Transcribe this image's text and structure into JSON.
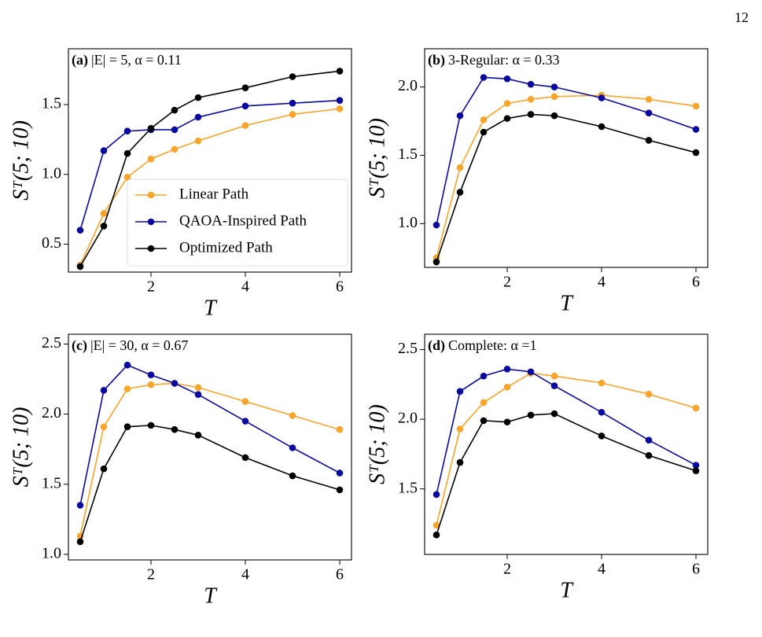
{
  "page_number": "12",
  "chart_data": [
    {
      "type": "line",
      "title_label": "(a)",
      "title": "|E| = 5, α = 0.11",
      "xlabel": "T",
      "ylabel": "Sᵀ(5; 10)",
      "x": [
        0.5,
        1,
        1.5,
        2,
        2.5,
        3,
        4,
        5,
        6
      ],
      "series": [
        {
          "name": "Linear Path",
          "color": "#f7a52c",
          "values": [
            0.35,
            0.72,
            0.98,
            1.11,
            1.18,
            1.24,
            1.35,
            1.43,
            1.47
          ]
        },
        {
          "name": "QAOA-Inspired Path",
          "color": "#0a0a9e",
          "values": [
            0.6,
            1.17,
            1.31,
            1.32,
            1.32,
            1.41,
            1.49,
            1.51,
            1.53
          ]
        },
        {
          "name": "Optimized Path",
          "color": "#000000",
          "values": [
            0.34,
            0.63,
            1.15,
            1.33,
            1.46,
            1.55,
            1.62,
            1.7,
            1.74
          ]
        }
      ],
      "xlim": [
        0.25,
        6.25
      ],
      "ylim": [
        0.3,
        1.9
      ],
      "xticks": [
        2,
        4,
        6
      ],
      "yticks": [
        0.5,
        {
          "value": 1,
          "label": "1.0"
        },
        1.5
      ],
      "legend": "lower right"
    },
    {
      "type": "line",
      "title_label": "(b)",
      "title": "3-Regular: α = 0.33",
      "xlabel": "T",
      "ylabel": "Sᵀ(5; 10)",
      "x": [
        0.5,
        1,
        1.5,
        2,
        2.5,
        3,
        4,
        5,
        6
      ],
      "series": [
        {
          "name": "Linear Path",
          "color": "#f7a52c",
          "values": [
            0.75,
            1.41,
            1.76,
            1.88,
            1.91,
            1.93,
            1.94,
            1.91,
            1.86
          ]
        },
        {
          "name": "QAOA-Inspired Path",
          "color": "#0a0a9e",
          "values": [
            0.99,
            1.79,
            2.07,
            2.06,
            2.02,
            2.0,
            1.92,
            1.81,
            1.69
          ]
        },
        {
          "name": "Optimized Path",
          "color": "#000000",
          "values": [
            0.72,
            1.23,
            1.67,
            1.77,
            1.8,
            1.79,
            1.71,
            1.61,
            1.52
          ]
        }
      ],
      "xlim": [
        0.25,
        6.25
      ],
      "ylim": [
        0.68,
        2.28
      ],
      "xticks": [
        2,
        4,
        6
      ],
      "yticks": [
        {
          "value": 1,
          "label": "1.0"
        },
        1.5,
        {
          "value": 2,
          "label": "2.0"
        }
      ]
    },
    {
      "type": "line",
      "title_label": "(c)",
      "title": "|E| = 30, α = 0.67",
      "xlabel": "T",
      "ylabel": "Sᵀ(5; 10)",
      "x": [
        0.5,
        1,
        1.5,
        2,
        2.5,
        3,
        4,
        5,
        6
      ],
      "series": [
        {
          "name": "Linear Path",
          "color": "#f7a52c",
          "values": [
            1.13,
            1.91,
            2.18,
            2.21,
            2.22,
            2.19,
            2.09,
            1.99,
            1.89
          ]
        },
        {
          "name": "QAOA-Inspired Path",
          "color": "#0a0a9e",
          "values": [
            1.35,
            2.17,
            2.35,
            2.28,
            2.22,
            2.14,
            1.95,
            1.76,
            1.58
          ]
        },
        {
          "name": "Optimized Path",
          "color": "#000000",
          "values": [
            1.09,
            1.61,
            1.91,
            1.92,
            1.89,
            1.85,
            1.69,
            1.56,
            1.46
          ]
        }
      ],
      "xlim": [
        0.25,
        6.25
      ],
      "ylim": [
        0.96,
        2.57
      ],
      "xticks": [
        2,
        4,
        6
      ],
      "yticks": [
        {
          "value": 1,
          "label": "1.0"
        },
        1.5,
        {
          "value": 2,
          "label": "2.0"
        },
        2.5
      ]
    },
    {
      "type": "line",
      "title_label": "(d)",
      "title": "Complete: α =1",
      "xlabel": "T",
      "ylabel": "Sᵀ(5; 10)",
      "x": [
        0.5,
        1,
        1.5,
        2,
        2.5,
        3,
        4,
        5,
        6
      ],
      "series": [
        {
          "name": "Linear Path",
          "color": "#f7a52c",
          "values": [
            1.24,
            1.93,
            2.12,
            2.23,
            2.33,
            2.31,
            2.26,
            2.18,
            2.08
          ]
        },
        {
          "name": "QAOA-Inspired Path",
          "color": "#0a0a9e",
          "values": [
            1.46,
            2.2,
            2.31,
            2.36,
            2.34,
            2.24,
            2.05,
            1.85,
            1.67
          ]
        },
        {
          "name": "Optimized Path",
          "color": "#000000",
          "values": [
            1.17,
            1.69,
            1.99,
            1.98,
            2.03,
            2.04,
            1.88,
            1.74,
            1.63
          ]
        }
      ],
      "xlim": [
        0.25,
        6.25
      ],
      "ylim": [
        1.03,
        2.61
      ],
      "xticks": [
        2,
        4,
        6
      ],
      "yticks": [
        1.5,
        {
          "value": 2,
          "label": "2.0"
        },
        2.5
      ]
    }
  ]
}
